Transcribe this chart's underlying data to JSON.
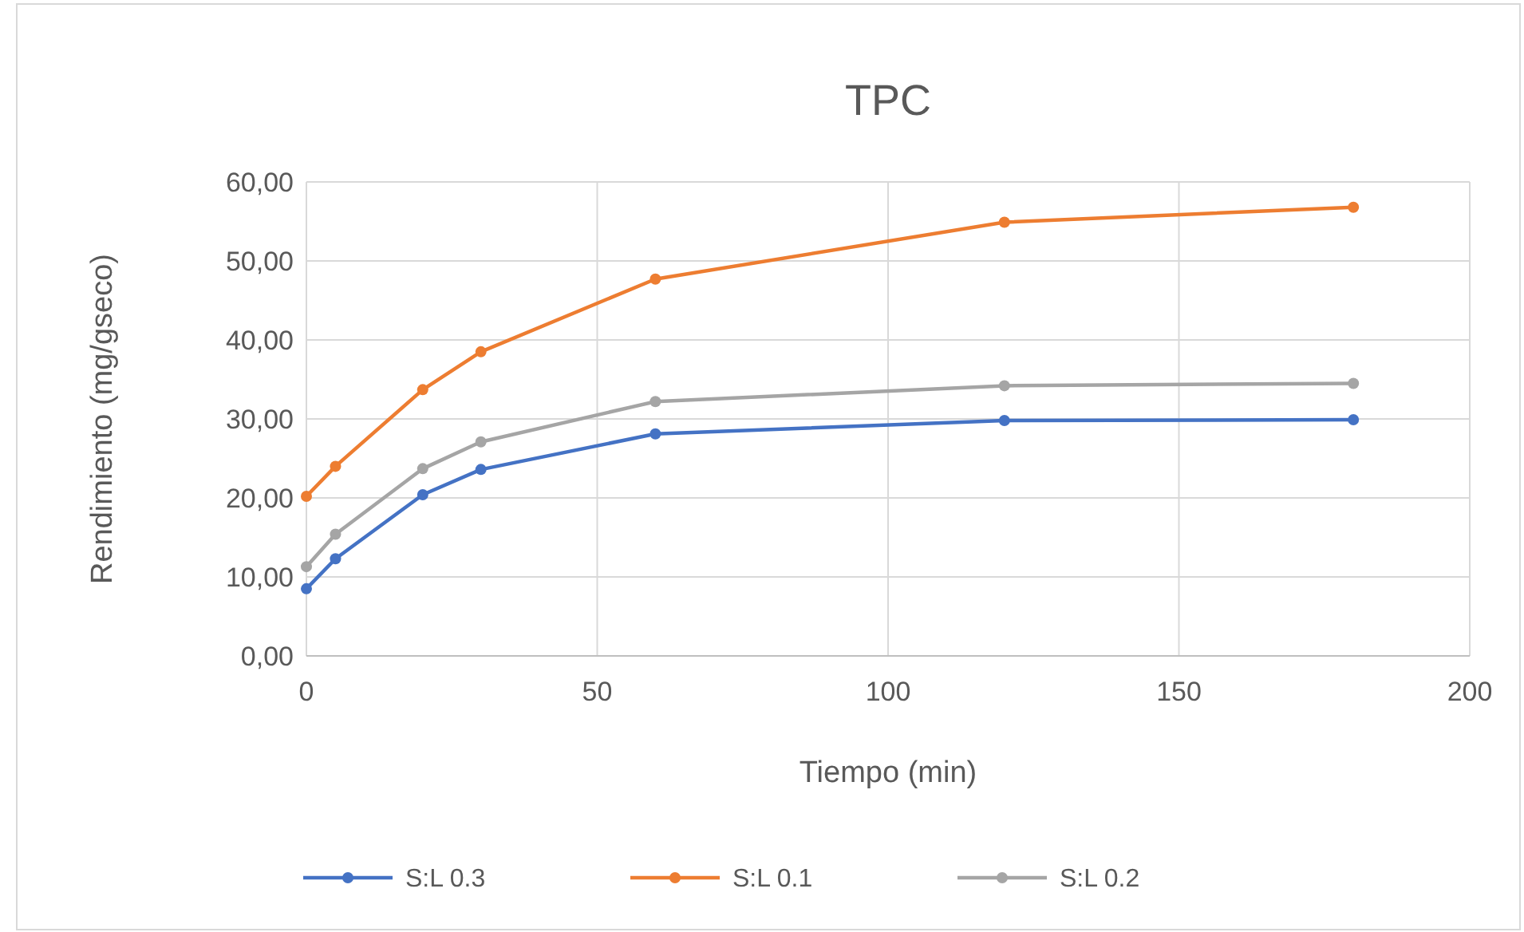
{
  "chart_data": {
    "type": "line",
    "title": "TPC",
    "xlabel": "Tiempo (min)",
    "ylabel": "Rendimiento (mg/gseco)",
    "x": [
      0,
      5,
      20,
      30,
      60,
      120,
      180
    ],
    "series": [
      {
        "name": "S:L 0.3",
        "color": "#4472c4",
        "values": [
          8.5,
          12.3,
          20.4,
          23.6,
          28.1,
          29.8,
          29.9
        ]
      },
      {
        "name": "S:L 0.1",
        "color": "#ed7d31",
        "values": [
          20.2,
          24.0,
          33.7,
          38.5,
          47.7,
          54.9,
          56.8
        ]
      },
      {
        "name": "S:L 0.2",
        "color": "#a5a5a5",
        "values": [
          11.3,
          15.4,
          23.7,
          27.1,
          32.2,
          34.2,
          34.5
        ]
      }
    ],
    "xlim": [
      0,
      200
    ],
    "xticks": [
      0,
      50,
      100,
      150,
      200
    ],
    "ylim": [
      0,
      60
    ],
    "yticks": [
      {
        "value": 0,
        "label": "0,00"
      },
      {
        "value": 10,
        "label": "10,00"
      },
      {
        "value": 20,
        "label": "20,00"
      },
      {
        "value": 30,
        "label": "30,00"
      },
      {
        "value": 40,
        "label": "40,00"
      },
      {
        "value": 50,
        "label": "50,00"
      },
      {
        "value": 60,
        "label": "60,00"
      }
    ],
    "grid": true,
    "legend": "bottom",
    "marker": "circle",
    "line_style": "solid"
  }
}
